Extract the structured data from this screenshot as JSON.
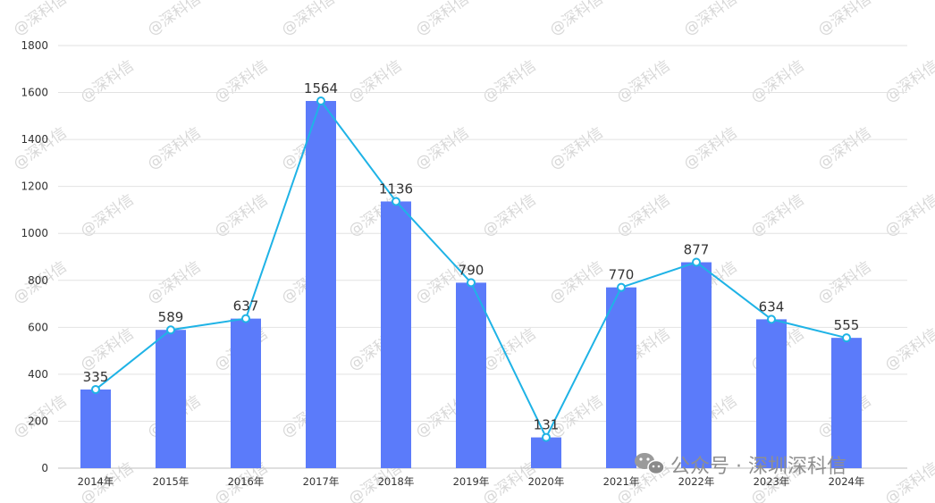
{
  "chart_data": {
    "type": "bar",
    "categories": [
      "2014年",
      "2015年",
      "2016年",
      "2017年",
      "2018年",
      "2019年",
      "2020年",
      "2021年",
      "2022年",
      "2023年",
      "2024年"
    ],
    "values": [
      335,
      589,
      637,
      1564,
      1136,
      790,
      131,
      770,
      877,
      634,
      555
    ],
    "overlay_line": true,
    "ylim": [
      0,
      1800
    ],
    "yticks": [
      0,
      200,
      400,
      600,
      800,
      1000,
      1200,
      1400,
      1600,
      1800
    ],
    "grid": true,
    "legend": "none",
    "title": "",
    "xlabel": "",
    "ylabel": "",
    "bar_color": "#5b7bfa",
    "line_color": "#1fb3e6"
  },
  "watermark": {
    "text": "@深科信"
  },
  "brand": {
    "icon": "wechat-icon",
    "text": "公众号 · 深圳深科信"
  }
}
